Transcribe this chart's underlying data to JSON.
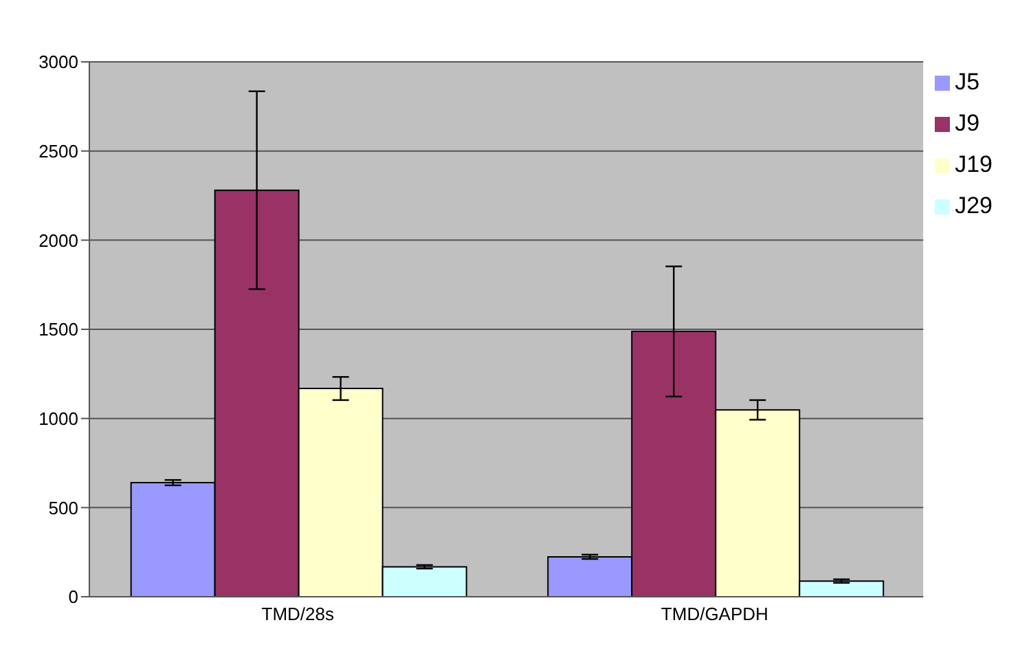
{
  "chart_data": {
    "type": "bar",
    "categories": [
      "TMD/28s",
      "TMD/GAPDH"
    ],
    "series": [
      {
        "name": "J5",
        "color": "#9999ff",
        "values": [
          640,
          224
        ],
        "errors": [
          15,
          12
        ]
      },
      {
        "name": "J9",
        "color": "#993366",
        "values": [
          2280,
          1488
        ],
        "errors": [
          555,
          365
        ]
      },
      {
        "name": "J19",
        "color": "#ffffcc",
        "values": [
          1168,
          1048
        ],
        "errors": [
          65,
          55
        ]
      },
      {
        "name": "J29",
        "color": "#ccffff",
        "values": [
          168,
          88
        ],
        "errors": [
          10,
          10
        ]
      }
    ],
    "ylim": [
      0,
      3000
    ],
    "yticks": [
      0,
      500,
      1000,
      1500,
      2000,
      2500,
      3000
    ],
    "grid": "y",
    "legend": "top right"
  }
}
